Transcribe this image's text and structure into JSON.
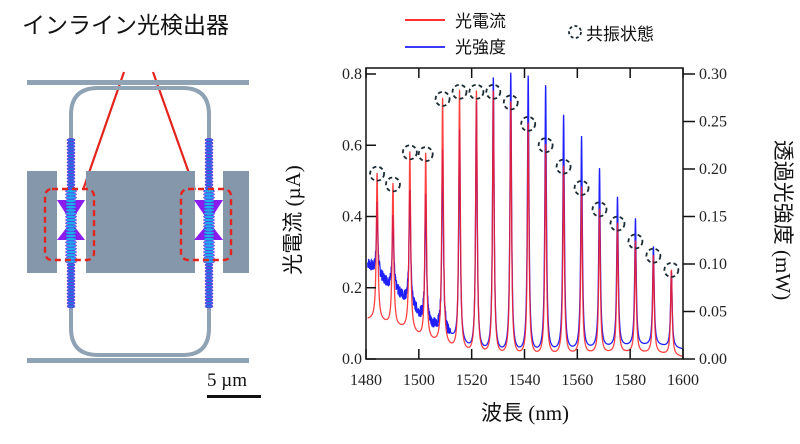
{
  "device_panel": {
    "title": "インライン光検出器",
    "scale_bar_label": "5 µm",
    "colors": {
      "waveguide": "#8fa3b5",
      "electrode": "#8497ab",
      "detector": "#8a1cf0",
      "mode": "#1e7cf0",
      "highlight": "#e3241d"
    }
  },
  "chart_data": {
    "type": "line",
    "title": "",
    "xlabel": "波長 (nm)",
    "ylabel": "光電流 (µA)",
    "y2label": "透過光強度 (mW)",
    "xlim": [
      1480,
      1600
    ],
    "ylim": [
      0.0,
      0.8
    ],
    "y2lim": [
      0.0,
      0.3
    ],
    "x_ticks": [
      1480,
      1500,
      1520,
      1540,
      1560,
      1580,
      1600
    ],
    "x_tick_labels": [
      "1480",
      "1500",
      "1520",
      "1540",
      "1560",
      "1580",
      "1600"
    ],
    "y_ticks": [
      0.0,
      0.2,
      0.4,
      0.6,
      0.8
    ],
    "y_tick_labels": [
      "0.0",
      "0.2",
      "0.4",
      "0.6",
      "0.8"
    ],
    "y2_ticks": [
      0.0,
      0.05,
      0.1,
      0.15,
      0.2,
      0.25,
      0.3
    ],
    "y2_tick_labels": [
      "0.00",
      "0.05",
      "0.10",
      "0.15",
      "0.20",
      "0.25",
      "0.30"
    ],
    "grid": false,
    "legend": {
      "placement": "top",
      "entries": [
        {
          "label": "光電流",
          "color": "#ff2020",
          "kind": "line"
        },
        {
          "label": "光強度",
          "color": "#2020ff",
          "kind": "line"
        },
        {
          "label": "共振状態",
          "color": "#1a2a33",
          "kind": "dashed-circle"
        }
      ]
    },
    "series": [
      {
        "name": "光電流",
        "axis": "left",
        "color": "#ff2020",
        "peaks_nm": [
          1484.2,
          1490.2,
          1496.6,
          1502.6,
          1509.0,
          1515.4,
          1521.8,
          1528.2,
          1534.8,
          1541.4,
          1548.0,
          1554.8,
          1561.6,
          1568.4,
          1575.2,
          1582.0,
          1588.8,
          1595.6
        ],
        "peak_values": [
          0.52,
          0.49,
          0.58,
          0.575,
          0.73,
          0.75,
          0.75,
          0.75,
          0.72,
          0.66,
          0.6,
          0.54,
          0.48,
          0.42,
          0.38,
          0.33,
          0.29,
          0.25
        ],
        "baseline_x": [
          1481,
          1484,
          1490,
          1496,
          1502,
          1508,
          1514,
          1520,
          1530,
          1545,
          1560,
          1575,
          1590,
          1600
        ],
        "baseline_values": [
          0.11,
          0.11,
          0.09,
          0.08,
          0.05,
          0.04,
          0.02,
          0.01,
          0.005,
          0.005,
          0.01,
          0.015,
          0.015,
          0.005
        ]
      },
      {
        "name": "光強度",
        "axis": "right",
        "color": "#2020ff",
        "peaks_nm": [
          1484.2,
          1490.2,
          1496.6,
          1502.6,
          1509.0,
          1515.4,
          1521.8,
          1528.2,
          1534.8,
          1541.4,
          1548.0,
          1554.8,
          1561.6,
          1568.4,
          1575.2,
          1582.0,
          1588.8,
          1595.6
        ],
        "peak_values": [
          0.16,
          0.148,
          0.178,
          0.175,
          0.22,
          0.24,
          0.27,
          0.295,
          0.3,
          0.297,
          0.287,
          0.256,
          0.233,
          0.2,
          0.17,
          0.147,
          0.118,
          0.092
        ],
        "baseline_x": [
          1481,
          1484,
          1490,
          1496,
          1502,
          1508,
          1514,
          1520,
          1530,
          1545,
          1560,
          1575,
          1590,
          1600
        ],
        "baseline_values": [
          0.1,
          0.09,
          0.075,
          0.06,
          0.04,
          0.03,
          0.018,
          0.008,
          0.005,
          0.005,
          0.008,
          0.012,
          0.014,
          0.01
        ]
      }
    ],
    "resonance_markers_nm": [
      1484.2,
      1490.2,
      1496.6,
      1502.6,
      1509.0,
      1515.4,
      1521.8,
      1528.2,
      1534.8,
      1541.4,
      1548.0,
      1554.8,
      1561.6,
      1568.4,
      1575.2,
      1582.0,
      1588.8,
      1595.6
    ],
    "resonance_marker_values": [
      0.52,
      0.49,
      0.58,
      0.575,
      0.73,
      0.75,
      0.75,
      0.75,
      0.72,
      0.66,
      0.6,
      0.54,
      0.48,
      0.42,
      0.38,
      0.33,
      0.29,
      0.25
    ]
  }
}
